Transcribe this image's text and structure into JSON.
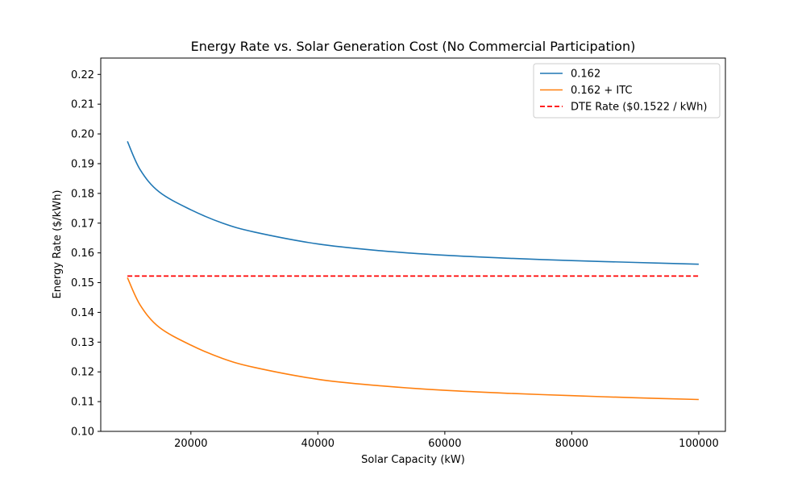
{
  "chart_data": {
    "type": "line",
    "title": "Energy Rate vs. Solar Generation Cost (No Commercial Participation)",
    "xlabel": "Solar Capacity (kW)",
    "ylabel": "Energy Rate ($/kWh)",
    "xlim": [
      5800,
      104200
    ],
    "ylim": [
      0.1,
      0.2255
    ],
    "x_ticks": [
      20000,
      40000,
      60000,
      80000,
      100000
    ],
    "x_tick_labels": [
      "20000",
      "40000",
      "60000",
      "80000",
      "100000"
    ],
    "y_ticks": [
      0.1,
      0.11,
      0.12,
      0.13,
      0.14,
      0.15,
      0.16,
      0.17,
      0.18,
      0.19,
      0.2,
      0.21,
      0.22
    ],
    "y_tick_labels": [
      "0.10",
      "0.11",
      "0.12",
      "0.13",
      "0.14",
      "0.15",
      "0.16",
      "0.17",
      "0.18",
      "0.19",
      "0.20",
      "0.21",
      "0.22"
    ],
    "grid": false,
    "legend_position": "top-right",
    "series": [
      {
        "name": "0.162",
        "color": "#1f77b4",
        "style": "solid",
        "x": [
          10000,
          12000,
          15000,
          20000,
          25000,
          30000,
          40000,
          50000,
          60000,
          70000,
          80000,
          90000,
          100000
        ],
        "y": [
          0.1975,
          0.188,
          0.1805,
          0.1745,
          0.17,
          0.167,
          0.163,
          0.1607,
          0.1592,
          0.1582,
          0.1574,
          0.1568,
          0.1562
        ]
      },
      {
        "name": "0.162 + ITC",
        "color": "#ff7f0e",
        "style": "solid",
        "x": [
          10000,
          12000,
          15000,
          20000,
          25000,
          30000,
          40000,
          50000,
          60000,
          70000,
          80000,
          90000,
          100000
        ],
        "y": [
          0.1517,
          0.1425,
          0.135,
          0.129,
          0.1245,
          0.1215,
          0.1175,
          0.1153,
          0.1138,
          0.1128,
          0.112,
          0.1113,
          0.1107
        ]
      },
      {
        "name": "DTE Rate ($0.1522 / kWh)",
        "color": "#ff0000",
        "style": "dashed",
        "x": [
          10000,
          100000
        ],
        "y": [
          0.1522,
          0.1522
        ]
      }
    ]
  }
}
